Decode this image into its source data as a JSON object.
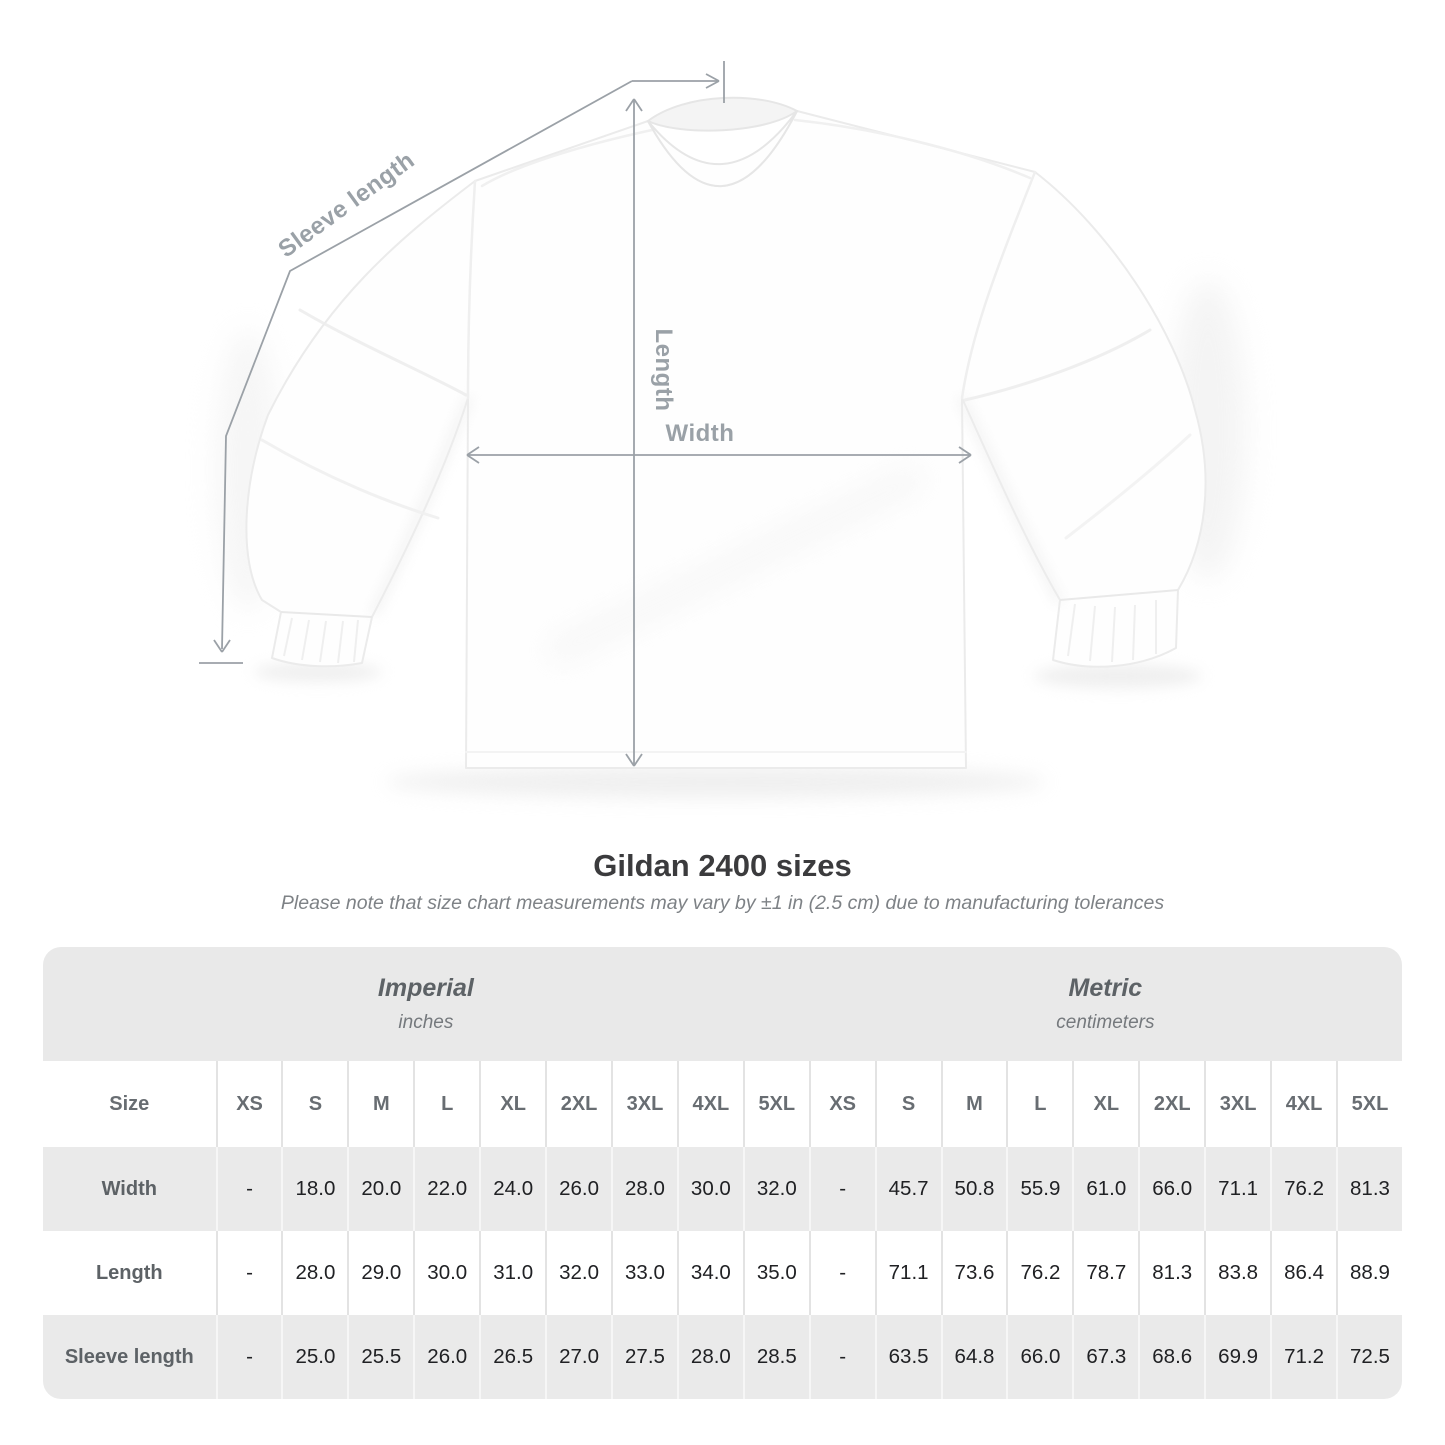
{
  "diagram": {
    "labels": {
      "sleeve_length": "Sleeve length",
      "length": "Length",
      "width": "Width"
    }
  },
  "heading": {
    "title": "Gildan 2400 sizes",
    "subtitle": "Please note that size chart measurements may vary by ±1 in (2.5 cm) due to manufacturing tolerances"
  },
  "table": {
    "size_header": "Size",
    "unit_groups": [
      {
        "label": "Imperial",
        "sublabel": "inches"
      },
      {
        "label": "Metric",
        "sublabel": "centimeters"
      }
    ],
    "sizes": [
      "XS",
      "S",
      "M",
      "L",
      "XL",
      "2XL",
      "3XL",
      "4XL",
      "5XL"
    ],
    "rows": [
      {
        "label": "Width",
        "imperial": [
          "-",
          "18.0",
          "20.0",
          "22.0",
          "24.0",
          "26.0",
          "28.0",
          "30.0",
          "32.0"
        ],
        "metric": [
          "-",
          "45.7",
          "50.8",
          "55.9",
          "61.0",
          "66.0",
          "71.1",
          "76.2",
          "81.3"
        ]
      },
      {
        "label": "Length",
        "imperial": [
          "-",
          "28.0",
          "29.0",
          "30.0",
          "31.0",
          "32.0",
          "33.0",
          "34.0",
          "35.0"
        ],
        "metric": [
          "-",
          "71.1",
          "73.6",
          "76.2",
          "78.7",
          "81.3",
          "83.8",
          "86.4",
          "88.9"
        ]
      },
      {
        "label": "Sleeve length",
        "imperial": [
          "-",
          "25.0",
          "25.5",
          "26.0",
          "26.5",
          "27.0",
          "27.5",
          "28.0",
          "28.5"
        ],
        "metric": [
          "-",
          "63.5",
          "64.8",
          "66.0",
          "67.3",
          "68.6",
          "69.9",
          "71.2",
          "72.5"
        ]
      }
    ]
  },
  "colors": {
    "band_gray": "#e9e9e9",
    "row_gray": "#eaeaea",
    "annotation_gray": "#9aa1a7",
    "value_text": "#202124"
  }
}
